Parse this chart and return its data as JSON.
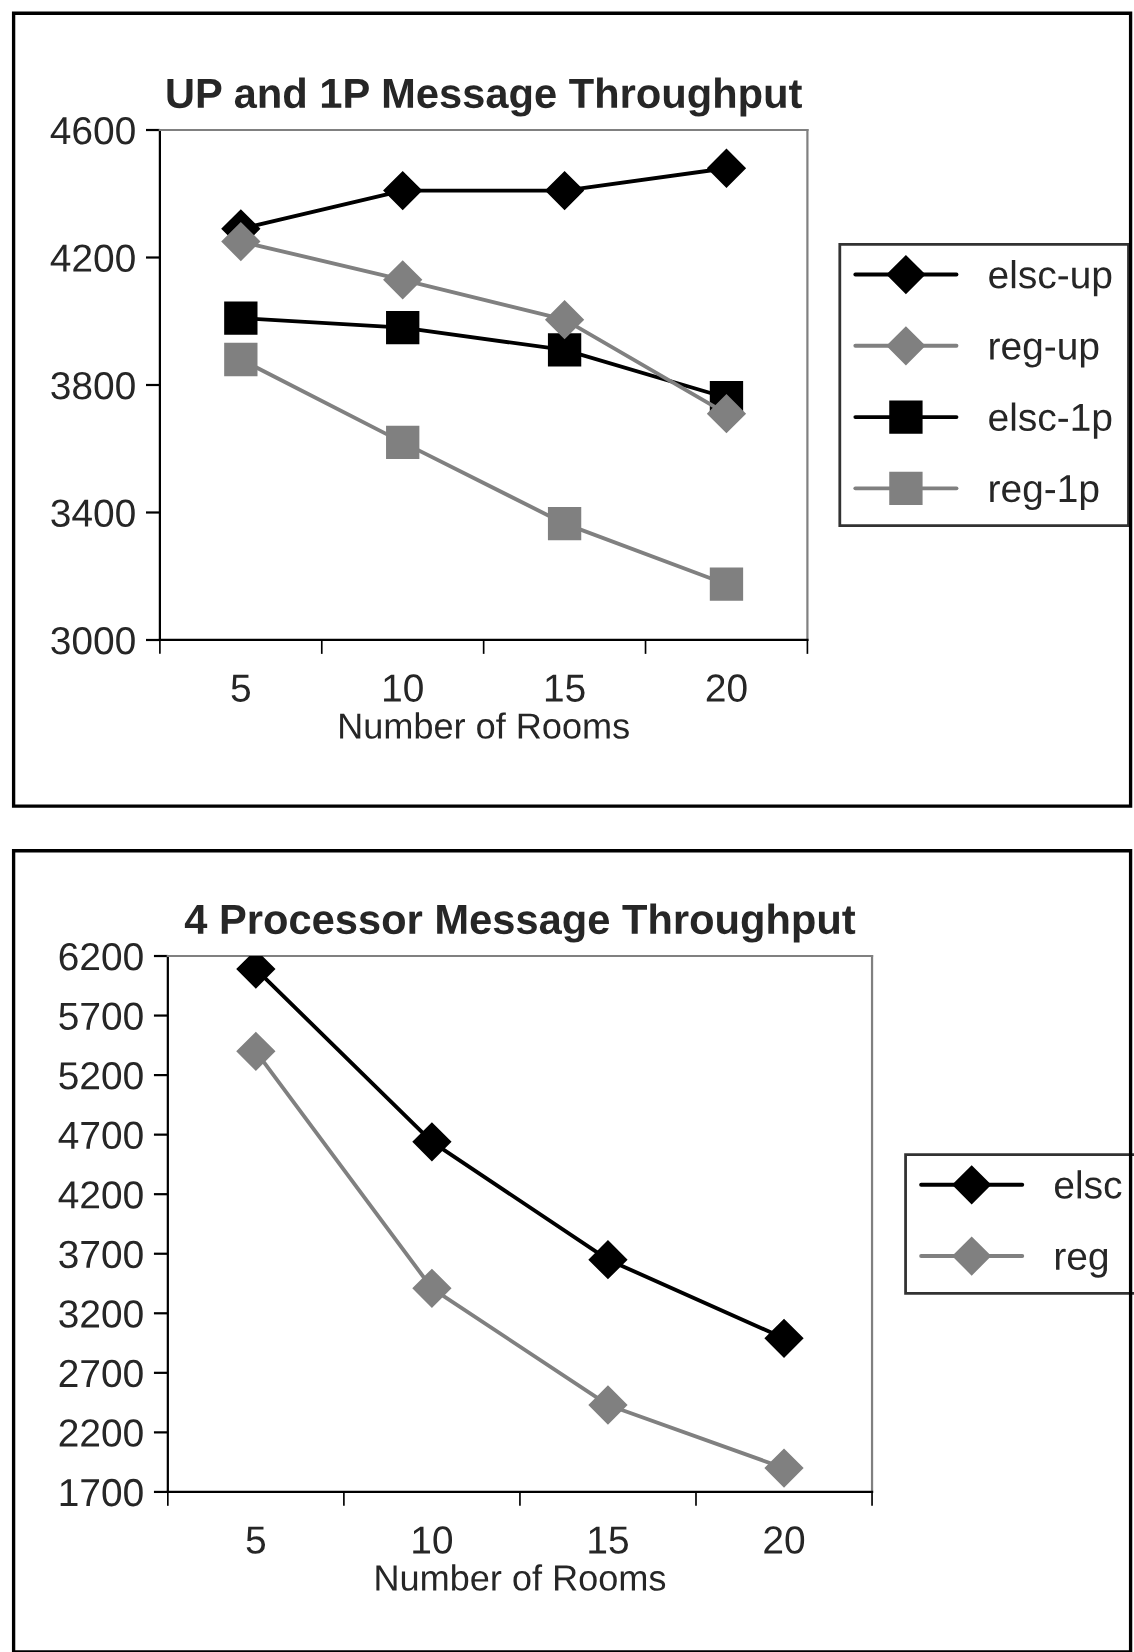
{
  "chart_data": [
    {
      "type": "line",
      "title": "UP and 1P Message Throughput",
      "xlabel": "Number of Rooms",
      "categories": [
        "5",
        "10",
        "15",
        "20"
      ],
      "ylim": [
        3000,
        4600
      ],
      "yticks": [
        3000,
        3400,
        3800,
        4200,
        4600
      ],
      "grid": false,
      "legend": "right",
      "series": [
        {
          "name": "elsc-up",
          "color": "#000000",
          "marker": "diamond",
          "values": [
            4290,
            4410,
            4410,
            4480
          ]
        },
        {
          "name": "reg-up",
          "color": "#808080",
          "marker": "diamond",
          "values": [
            4250,
            4130,
            4005,
            3710
          ]
        },
        {
          "name": "elsc-1p",
          "color": "#000000",
          "marker": "square",
          "values": [
            4010,
            3980,
            3910,
            3760
          ]
        },
        {
          "name": "reg-1p",
          "color": "#808080",
          "marker": "square",
          "values": [
            3880,
            3620,
            3365,
            3175
          ]
        }
      ]
    },
    {
      "type": "line",
      "title": "4 Processor Message Throughput",
      "xlabel": "Number of Rooms",
      "categories": [
        "5",
        "10",
        "15",
        "20"
      ],
      "ylim": [
        1700,
        6200
      ],
      "yticks": [
        1700,
        2200,
        2700,
        3200,
        3700,
        4200,
        4700,
        5200,
        5700,
        6200
      ],
      "grid": false,
      "legend": "right",
      "series": [
        {
          "name": "elsc",
          "color": "#000000",
          "marker": "diamond",
          "values": [
            6090,
            4640,
            3650,
            2990
          ]
        },
        {
          "name": "reg",
          "color": "#808080",
          "marker": "diamond",
          "values": [
            5400,
            3410,
            2430,
            1900
          ]
        }
      ]
    }
  ]
}
